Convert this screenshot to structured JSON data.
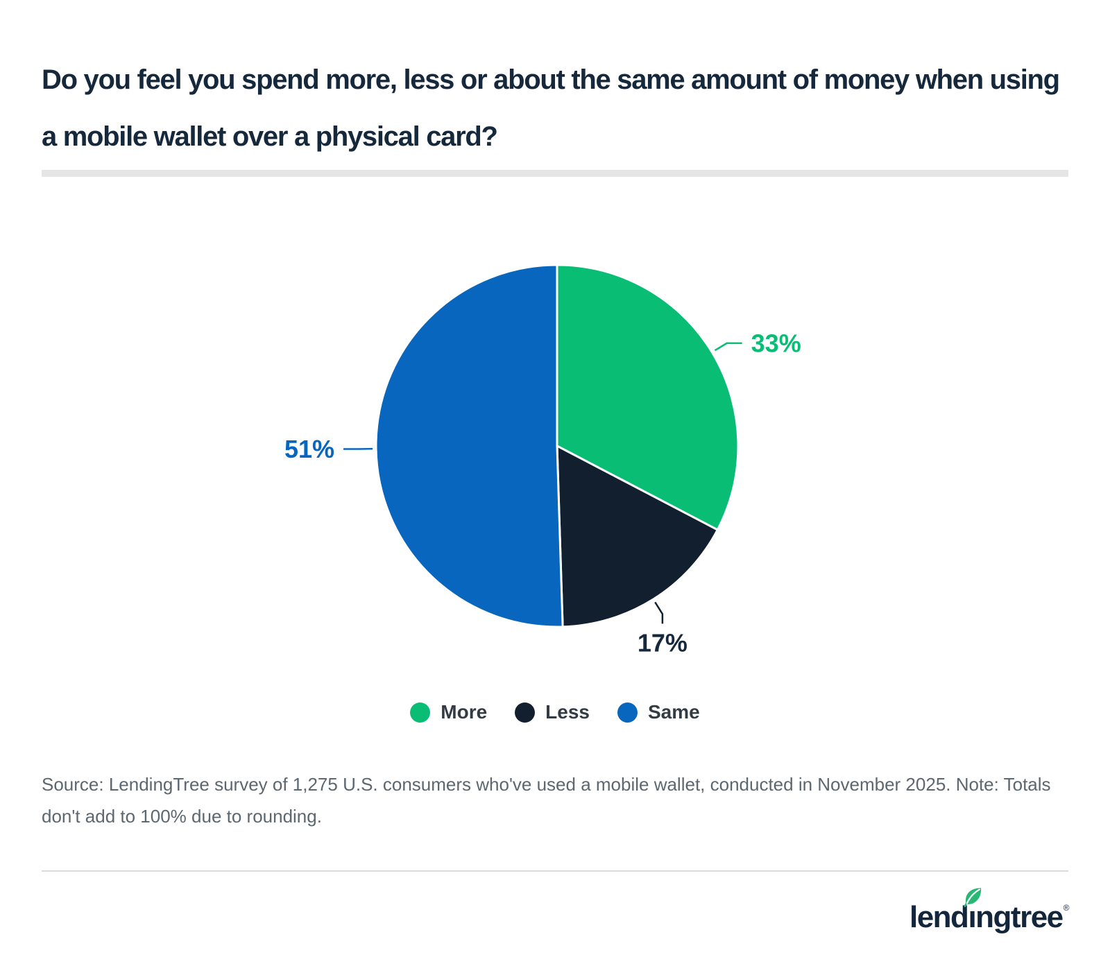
{
  "header": {
    "title": "Do you feel you spend more, less or about the same amount of money when using a mobile wallet over a physical card?",
    "title_lines": [
      "Do you feel you spend more, less or about the same amount of money when using",
      "a mobile wallet over a physical card?"
    ]
  },
  "chart_data": {
    "type": "pie",
    "title": "Do you feel you spend more, less or about the same amount of money when using a mobile wallet over a physical card?",
    "categories": [
      "More",
      "Less",
      "Same"
    ],
    "values": [
      33,
      17,
      51
    ],
    "unit": "%",
    "colors": [
      "#09BD74",
      "#121F2E",
      "#0866BE"
    ],
    "label_text_colors": [
      "#09BD74",
      "#16283C",
      "#0866BE"
    ],
    "start_angle": "top",
    "direction": "clockwise",
    "legend_position": "bottom",
    "data_labels": [
      "33%",
      "17%",
      "51%"
    ]
  },
  "footer": {
    "source": "Source: LendingTree survey of 1,275 U.S. consumers who've used a mobile wallet, conducted in November 2025. Note: Totals don't add to 100% due to rounding.",
    "logo": {
      "text": "lendingtree",
      "registered": "®",
      "leaf_color": "#27B873",
      "text_color": "#13263C"
    }
  },
  "colors": {
    "background": "#FFFFFF",
    "title_text": "#16283C",
    "title_divider": "#E5E5E5",
    "legend_text": "#333B45",
    "source_text": "#5C6770",
    "footer_rule": "#DADADA"
  }
}
